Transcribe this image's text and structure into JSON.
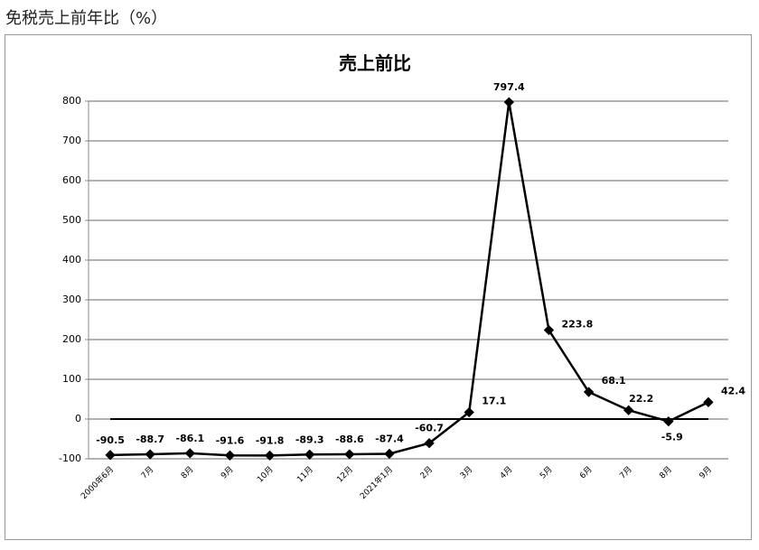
{
  "header": {
    "title": "免税売上前年比（%）"
  },
  "chart_data": {
    "type": "line",
    "title": "売上前比",
    "categories": [
      "2000年6月",
      "7月",
      "8月",
      "9月",
      "10月",
      "11月",
      "12月",
      "2021年1月",
      "2月",
      "3月",
      "4月",
      "5月",
      "6月",
      "7月",
      "8月",
      "9月"
    ],
    "series": [
      {
        "name": "売上前比",
        "color": "#000000",
        "values": [
          -90.5,
          -88.7,
          -86.1,
          -91.6,
          -91.8,
          -89.3,
          -88.6,
          -87.4,
          -60.7,
          17.1,
          797.4,
          223.8,
          68.1,
          22.2,
          -5.9,
          42.4
        ]
      }
    ],
    "ylim": [
      -100,
      800
    ],
    "yticks": [
      -100,
      0,
      100,
      200,
      300,
      400,
      500,
      600,
      700,
      800
    ],
    "grid": true
  }
}
